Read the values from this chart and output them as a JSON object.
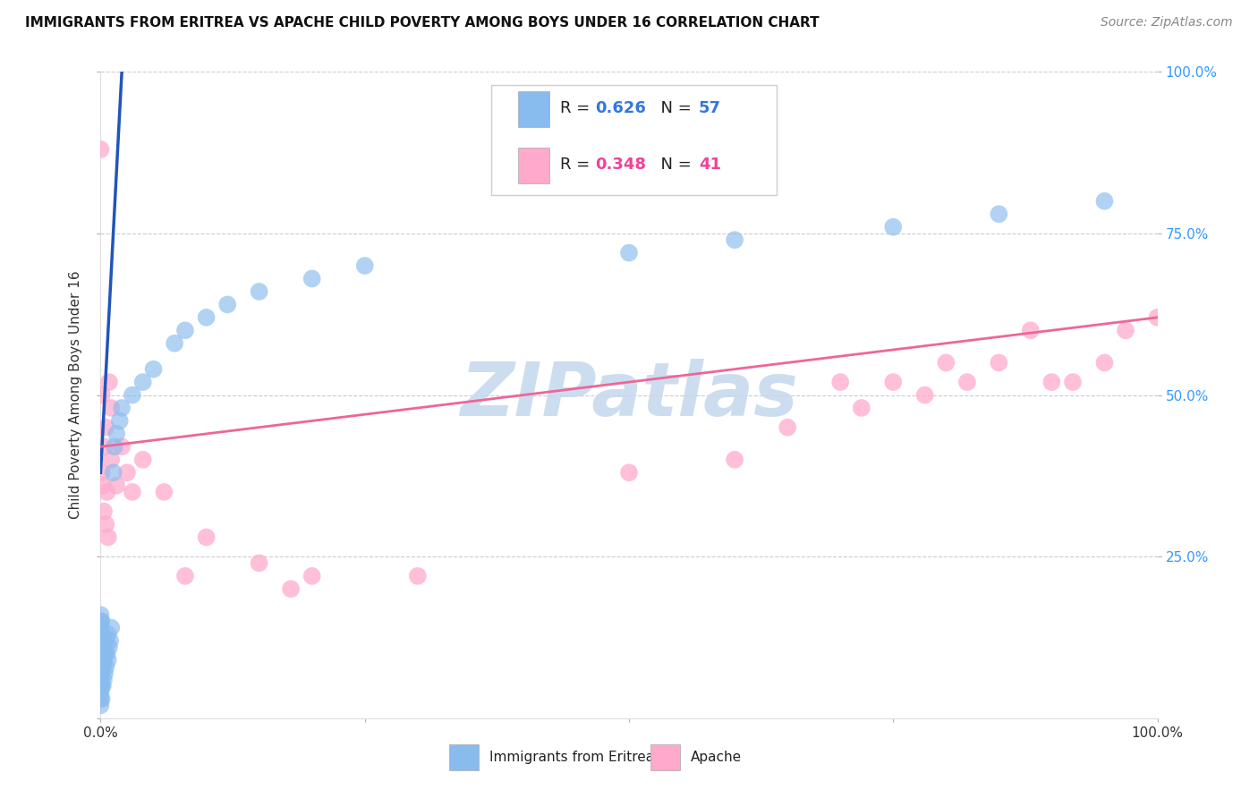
{
  "title": "IMMIGRANTS FROM ERITREA VS APACHE CHILD POVERTY AMONG BOYS UNDER 16 CORRELATION CHART",
  "source": "Source: ZipAtlas.com",
  "ylabel": "Child Poverty Among Boys Under 16",
  "legend1_label": "Immigrants from Eritrea",
  "legend2_label": "Apache",
  "R1": 0.626,
  "N1": 57,
  "R2": 0.348,
  "N2": 41,
  "blue_color": "#88bbee",
  "blue_line_color": "#2255bb",
  "pink_color": "#ffaacc",
  "pink_line_color": "#ee6699",
  "blue_scatter_x": [
    0.0,
    0.0,
    0.0,
    0.0,
    0.0,
    0.0,
    0.0,
    0.0,
    0.0,
    0.0,
    0.0,
    0.0,
    0.0,
    0.0,
    0.0,
    0.001,
    0.001,
    0.001,
    0.001,
    0.001,
    0.001,
    0.001,
    0.002,
    0.002,
    0.002,
    0.003,
    0.003,
    0.004,
    0.004,
    0.005,
    0.005,
    0.006,
    0.007,
    0.007,
    0.008,
    0.009,
    0.01,
    0.012,
    0.013,
    0.015,
    0.018,
    0.02,
    0.03,
    0.04,
    0.05,
    0.07,
    0.08,
    0.1,
    0.12,
    0.15,
    0.2,
    0.25,
    0.5,
    0.6,
    0.75,
    0.85,
    0.95
  ],
  "blue_scatter_y": [
    0.02,
    0.03,
    0.04,
    0.05,
    0.06,
    0.07,
    0.08,
    0.09,
    0.1,
    0.11,
    0.12,
    0.13,
    0.14,
    0.15,
    0.16,
    0.03,
    0.05,
    0.07,
    0.09,
    0.11,
    0.13,
    0.15,
    0.05,
    0.08,
    0.11,
    0.06,
    0.09,
    0.07,
    0.1,
    0.08,
    0.12,
    0.1,
    0.09,
    0.13,
    0.11,
    0.12,
    0.14,
    0.38,
    0.42,
    0.44,
    0.46,
    0.48,
    0.5,
    0.52,
    0.54,
    0.58,
    0.6,
    0.62,
    0.64,
    0.66,
    0.68,
    0.7,
    0.72,
    0.74,
    0.76,
    0.78,
    0.8
  ],
  "pink_scatter_x": [
    0.0,
    0.001,
    0.001,
    0.002,
    0.003,
    0.004,
    0.005,
    0.005,
    0.006,
    0.007,
    0.008,
    0.01,
    0.01,
    0.015,
    0.02,
    0.025,
    0.03,
    0.04,
    0.06,
    0.08,
    0.1,
    0.15,
    0.18,
    0.2,
    0.3,
    0.5,
    0.6,
    0.65,
    0.7,
    0.72,
    0.75,
    0.78,
    0.8,
    0.82,
    0.85,
    0.88,
    0.9,
    0.92,
    0.95,
    0.97,
    1.0
  ],
  "pink_scatter_y": [
    0.88,
    0.38,
    0.5,
    0.36,
    0.32,
    0.42,
    0.3,
    0.45,
    0.35,
    0.28,
    0.52,
    0.4,
    0.48,
    0.36,
    0.42,
    0.38,
    0.35,
    0.4,
    0.35,
    0.22,
    0.28,
    0.24,
    0.2,
    0.22,
    0.22,
    0.38,
    0.4,
    0.45,
    0.52,
    0.48,
    0.52,
    0.5,
    0.55,
    0.52,
    0.55,
    0.6,
    0.52,
    0.52,
    0.55,
    0.6,
    0.62
  ],
  "watermark_text": "ZIPatlas",
  "watermark_color": "#c5d8ee"
}
